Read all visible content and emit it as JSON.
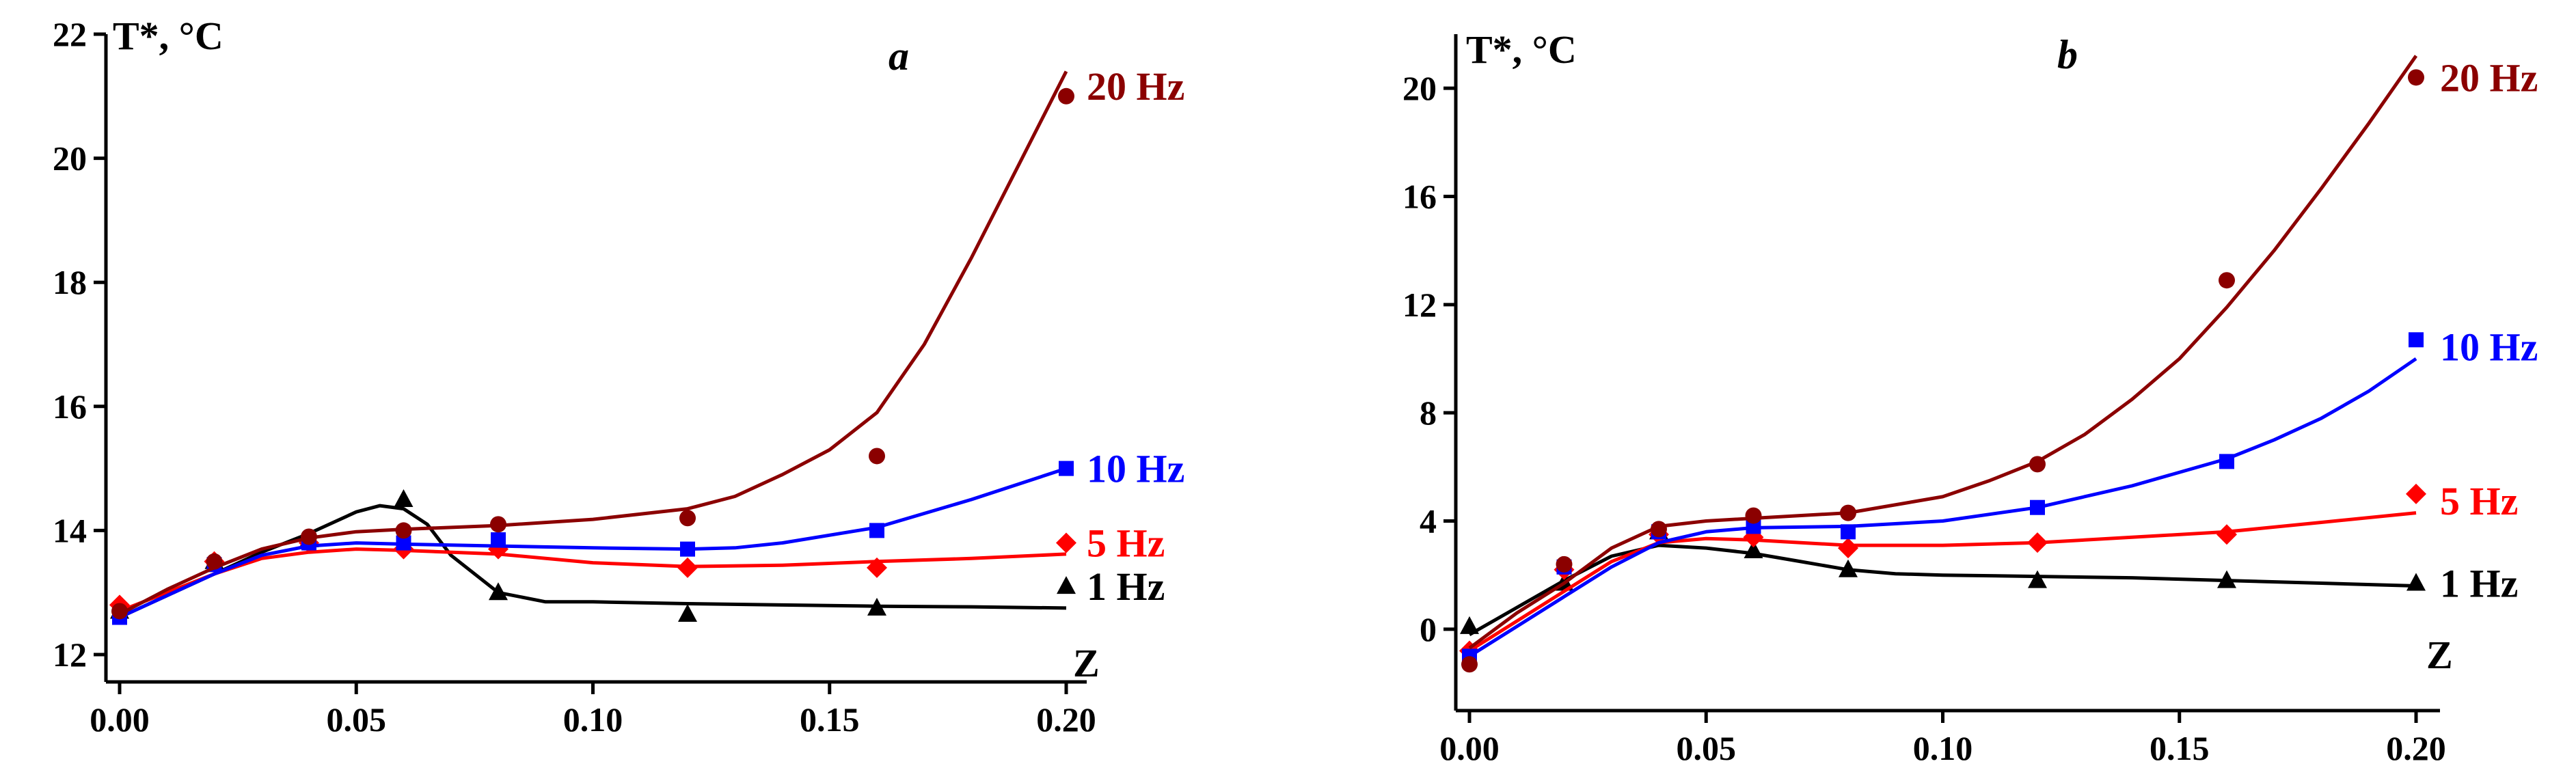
{
  "chart_data": [
    {
      "type": "scatter",
      "panel": "a",
      "ylabel": "T*, °C",
      "xlabel": "Z",
      "xlim": [
        0.0,
        0.2
      ],
      "ylim": [
        12,
        22
      ],
      "xticks": [
        "0.00",
        "0.05",
        "0.10",
        "0.15",
        "0.20"
      ],
      "xtick_values": [
        0.0,
        0.05,
        0.1,
        0.15,
        0.2
      ],
      "yticks": [
        "12",
        "14",
        "16",
        "18",
        "20",
        "22"
      ],
      "ytick_values": [
        12,
        14,
        16,
        18,
        20,
        22
      ],
      "series": [
        {
          "name": "1 Hz",
          "color": "#000000",
          "marker": "triangle",
          "x": [
            0.0,
            0.02,
            0.04,
            0.06,
            0.08,
            0.12,
            0.16,
            0.2
          ],
          "y": [
            12.7,
            13.5,
            13.85,
            14.5,
            13.0,
            12.65,
            12.75,
            13.1
          ],
          "fit_x": [
            0.0,
            0.01,
            0.02,
            0.03,
            0.04,
            0.05,
            0.055,
            0.06,
            0.065,
            0.07,
            0.08,
            0.09,
            0.1,
            0.12,
            0.14,
            0.16,
            0.18,
            0.2
          ],
          "fit_y": [
            12.6,
            12.95,
            13.3,
            13.65,
            13.95,
            14.3,
            14.4,
            14.35,
            14.1,
            13.6,
            13.0,
            12.85,
            12.85,
            12.82,
            12.8,
            12.78,
            12.77,
            12.75
          ]
        },
        {
          "name": "5 Hz",
          "color": "#ff0000",
          "marker": "diamond",
          "x": [
            0.0,
            0.02,
            0.04,
            0.06,
            0.08,
            0.12,
            0.16,
            0.2
          ],
          "y": [
            12.8,
            13.5,
            13.8,
            13.7,
            13.7,
            13.4,
            13.4,
            13.8
          ],
          "fit_x": [
            0.0,
            0.01,
            0.02,
            0.03,
            0.04,
            0.05,
            0.06,
            0.08,
            0.1,
            0.12,
            0.14,
            0.16,
            0.18,
            0.2
          ],
          "fit_y": [
            12.7,
            13.0,
            13.3,
            13.55,
            13.65,
            13.7,
            13.68,
            13.62,
            13.48,
            13.42,
            13.44,
            13.5,
            13.55,
            13.62
          ]
        },
        {
          "name": "10 Hz",
          "color": "#0000ff",
          "marker": "square",
          "x": [
            0.0,
            0.02,
            0.04,
            0.06,
            0.08,
            0.12,
            0.16,
            0.2
          ],
          "y": [
            12.6,
            13.45,
            13.8,
            13.8,
            13.85,
            13.7,
            14.0,
            15.0
          ],
          "fit_x": [
            0.0,
            0.01,
            0.02,
            0.03,
            0.04,
            0.05,
            0.06,
            0.08,
            0.1,
            0.12,
            0.13,
            0.14,
            0.16,
            0.18,
            0.2
          ],
          "fit_y": [
            12.6,
            12.95,
            13.3,
            13.6,
            13.75,
            13.8,
            13.78,
            13.75,
            13.72,
            13.7,
            13.72,
            13.8,
            14.05,
            14.5,
            15.0
          ]
        },
        {
          "name": "20 Hz",
          "color": "#8b0000",
          "marker": "circle",
          "x": [
            0.0,
            0.02,
            0.04,
            0.06,
            0.08,
            0.12,
            0.16,
            0.2
          ],
          "y": [
            12.7,
            13.5,
            13.9,
            14.0,
            14.1,
            14.2,
            15.2,
            21.0
          ],
          "fit_x": [
            0.0,
            0.01,
            0.02,
            0.03,
            0.04,
            0.05,
            0.06,
            0.08,
            0.1,
            0.12,
            0.13,
            0.14,
            0.15,
            0.16,
            0.17,
            0.18,
            0.19,
            0.2
          ],
          "fit_y": [
            12.65,
            13.05,
            13.4,
            13.7,
            13.88,
            13.98,
            14.02,
            14.08,
            14.18,
            14.35,
            14.55,
            14.9,
            15.3,
            15.9,
            17.0,
            18.4,
            19.9,
            21.4
          ]
        }
      ]
    },
    {
      "type": "scatter",
      "panel": "b",
      "ylabel": "T*, °C",
      "xlabel": "Z",
      "xlim": [
        0.0,
        0.2
      ],
      "ylim": [
        -2,
        22
      ],
      "xticks": [
        "0.00",
        "0.05",
        "0.10",
        "0.15",
        "0.20"
      ],
      "xtick_values": [
        0.0,
        0.05,
        0.1,
        0.15,
        0.2
      ],
      "yticks": [
        "0",
        "4",
        "8",
        "12",
        "16",
        "20"
      ],
      "ytick_values": [
        0,
        4,
        8,
        12,
        16,
        20
      ],
      "series": [
        {
          "name": "1 Hz",
          "color": "#000000",
          "marker": "triangle",
          "x": [
            0.0,
            0.02,
            0.04,
            0.06,
            0.08,
            0.12,
            0.16,
            0.2
          ],
          "y": [
            0.1,
            1.7,
            3.6,
            2.9,
            2.2,
            1.8,
            1.8,
            1.7
          ],
          "fit_x": [
            0.0,
            0.01,
            0.02,
            0.03,
            0.04,
            0.05,
            0.06,
            0.07,
            0.08,
            0.09,
            0.1,
            0.12,
            0.14,
            0.16,
            0.18,
            0.2
          ],
          "fit_y": [
            -0.2,
            0.8,
            1.8,
            2.7,
            3.1,
            3.0,
            2.8,
            2.5,
            2.2,
            2.05,
            2.0,
            1.95,
            1.9,
            1.8,
            1.7,
            1.6
          ]
        },
        {
          "name": "5 Hz",
          "color": "#ff0000",
          "marker": "diamond",
          "x": [
            0.0,
            0.02,
            0.04,
            0.06,
            0.08,
            0.12,
            0.16,
            0.2
          ],
          "y": [
            -0.8,
            2.2,
            3.5,
            3.4,
            3.0,
            3.2,
            3.5,
            5.0
          ],
          "fit_x": [
            0.0,
            0.01,
            0.02,
            0.03,
            0.04,
            0.05,
            0.06,
            0.07,
            0.08,
            0.1,
            0.12,
            0.14,
            0.16,
            0.18,
            0.2
          ],
          "fit_y": [
            -0.8,
            0.3,
            1.4,
            2.5,
            3.2,
            3.35,
            3.3,
            3.2,
            3.1,
            3.1,
            3.2,
            3.4,
            3.6,
            3.95,
            4.3
          ]
        },
        {
          "name": "10 Hz",
          "color": "#0000ff",
          "marker": "square",
          "x": [
            0.0,
            0.02,
            0.04,
            0.06,
            0.08,
            0.12,
            0.16,
            0.2
          ],
          "y": [
            -1.0,
            2.3,
            3.6,
            3.8,
            3.6,
            4.5,
            6.2,
            10.7
          ],
          "fit_x": [
            0.0,
            0.01,
            0.02,
            0.03,
            0.04,
            0.05,
            0.06,
            0.08,
            0.1,
            0.12,
            0.14,
            0.16,
            0.17,
            0.18,
            0.19,
            0.2
          ],
          "fit_y": [
            -1.0,
            0.1,
            1.2,
            2.3,
            3.2,
            3.6,
            3.75,
            3.8,
            4.0,
            4.5,
            5.3,
            6.3,
            7.0,
            7.8,
            8.8,
            10.0
          ]
        },
        {
          "name": "20 Hz",
          "color": "#8b0000",
          "marker": "circle",
          "x": [
            0.0,
            0.02,
            0.04,
            0.06,
            0.08,
            0.12,
            0.16,
            0.2
          ],
          "y": [
            -1.3,
            2.4,
            3.7,
            4.2,
            4.3,
            6.1,
            12.9,
            20.4
          ],
          "fit_x": [
            0.0,
            0.01,
            0.02,
            0.03,
            0.04,
            0.05,
            0.06,
            0.08,
            0.1,
            0.11,
            0.12,
            0.13,
            0.14,
            0.15,
            0.16,
            0.17,
            0.18,
            0.19,
            0.2
          ],
          "fit_y": [
            -0.7,
            0.6,
            1.7,
            3.0,
            3.8,
            4.0,
            4.1,
            4.3,
            4.9,
            5.5,
            6.2,
            7.2,
            8.5,
            10.0,
            11.9,
            14.0,
            16.3,
            18.7,
            21.2
          ]
        }
      ]
    }
  ]
}
